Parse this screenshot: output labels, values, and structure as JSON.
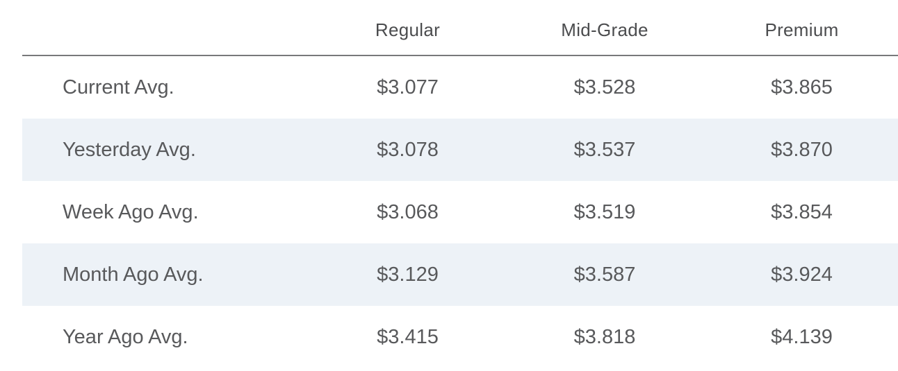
{
  "chart_data": {
    "type": "table",
    "title": "",
    "columns": [
      "Regular",
      "Mid-Grade",
      "Premium"
    ],
    "rows": [
      {
        "label": "Current Avg.",
        "values": [
          "$3.077",
          "$3.528",
          "$3.865"
        ]
      },
      {
        "label": "Yesterday Avg.",
        "values": [
          "$3.078",
          "$3.537",
          "$3.870"
        ]
      },
      {
        "label": "Week Ago Avg.",
        "values": [
          "$3.068",
          "$3.519",
          "$3.854"
        ]
      },
      {
        "label": "Month Ago Avg.",
        "values": [
          "$3.129",
          "$3.587",
          "$3.924"
        ]
      },
      {
        "label": "Year Ago Avg.",
        "values": [
          "$3.415",
          "$3.818",
          "$4.139"
        ]
      }
    ],
    "numeric": {
      "categories": [
        "Current Avg.",
        "Yesterday Avg.",
        "Week Ago Avg.",
        "Month Ago Avg.",
        "Year Ago Avg."
      ],
      "series": [
        {
          "name": "Regular",
          "values": [
            3.077,
            3.078,
            3.068,
            3.129,
            3.415
          ]
        },
        {
          "name": "Mid-Grade",
          "values": [
            3.528,
            3.537,
            3.519,
            3.587,
            3.818
          ]
        },
        {
          "name": "Premium",
          "values": [
            3.865,
            3.87,
            3.854,
            3.924,
            4.139
          ]
        }
      ]
    },
    "layout_hints": {
      "striped_rows": [
        1,
        3
      ],
      "grid": "off",
      "header_rule": true
    }
  },
  "colors": {
    "background": "#ffffff",
    "stripe_row_bg": "#edf2f7",
    "body_text": "#58595b",
    "header_text": "#4b4c4e",
    "header_rule": "#77787a"
  }
}
